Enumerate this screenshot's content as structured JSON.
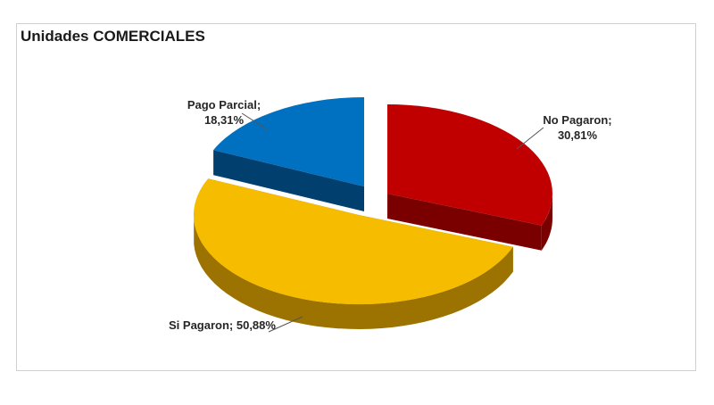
{
  "chart_data": {
    "type": "pie",
    "title": "Unidades COMERCIALES",
    "slices": [
      {
        "label": "No Pagaron",
        "value": 30.81,
        "display": "30,81%",
        "color": "#c00000",
        "side_color": "#7a0000"
      },
      {
        "label": "Si Pagaron",
        "value": 50.88,
        "display": "50,88%",
        "color": "#f6bd00",
        "side_color": "#9c7300"
      },
      {
        "label": "Pago Parcial",
        "value": 18.31,
        "display": "18,31%",
        "color": "#0070c0",
        "side_color": "#003f6e"
      }
    ],
    "legend": "none",
    "three_d": true
  }
}
